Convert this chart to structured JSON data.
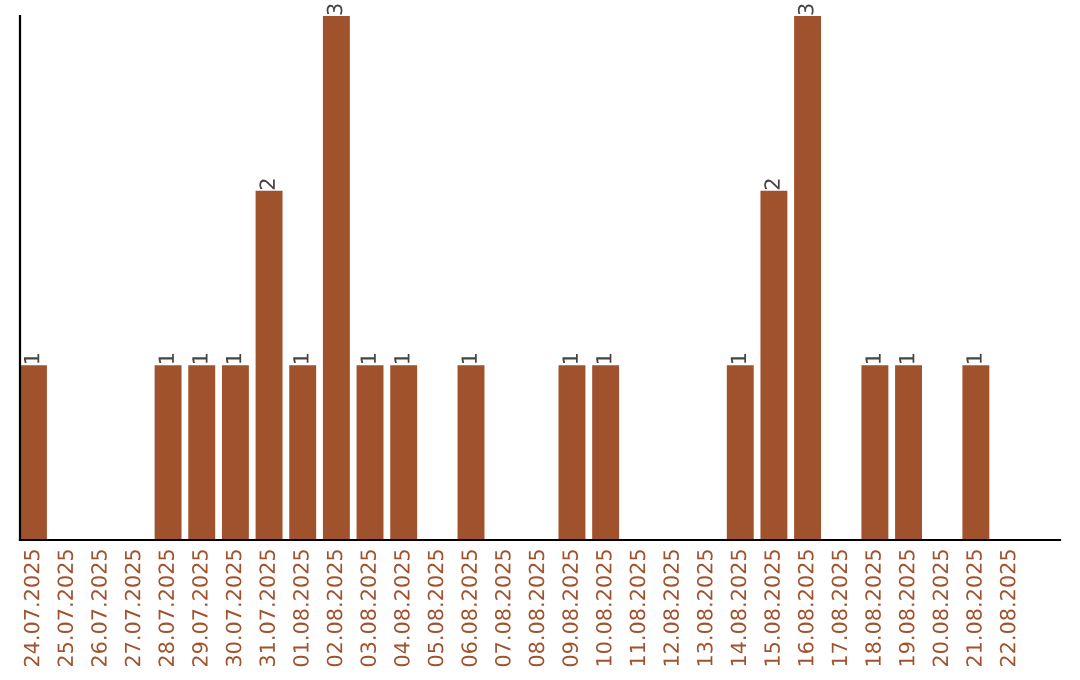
{
  "chart_data": {
    "type": "bar",
    "relative": false,
    "categories": [
      "24.07.2025",
      "25.07.2025",
      "26.07.2025",
      "27.07.2025",
      "28.07.2025",
      "29.07.2025",
      "30.07.2025",
      "31.07.2025",
      "01.08.2025",
      "02.08.2025",
      "03.08.2025",
      "04.08.2025",
      "05.08.2025",
      "06.08.2025",
      "07.08.2025",
      "08.08.2025",
      "09.08.2025",
      "10.08.2025",
      "11.08.2025",
      "12.08.2025",
      "13.08.2025",
      "14.08.2025",
      "15.08.2025",
      "16.08.2025",
      "17.08.2025",
      "18.08.2025",
      "19.08.2025",
      "20.08.2025",
      "21.08.2025",
      "22.08.2025"
    ],
    "values": [
      1,
      0,
      0,
      0,
      1,
      1,
      1,
      2,
      1,
      3,
      1,
      1,
      0,
      1,
      0,
      0,
      1,
      1,
      0,
      0,
      0,
      1,
      2,
      3,
      0,
      1,
      1,
      0,
      1,
      0
    ],
    "value_labels": [
      "1",
      null,
      null,
      null,
      "1",
      "1",
      "1",
      "2",
      "1",
      "3",
      "1",
      "1",
      null,
      "1",
      null,
      null,
      "1",
      "1",
      null,
      null,
      null,
      "1",
      "2",
      "3",
      null,
      "1",
      "1",
      null,
      "1",
      null
    ],
    "color": "#a0522d",
    "grid": false
  }
}
